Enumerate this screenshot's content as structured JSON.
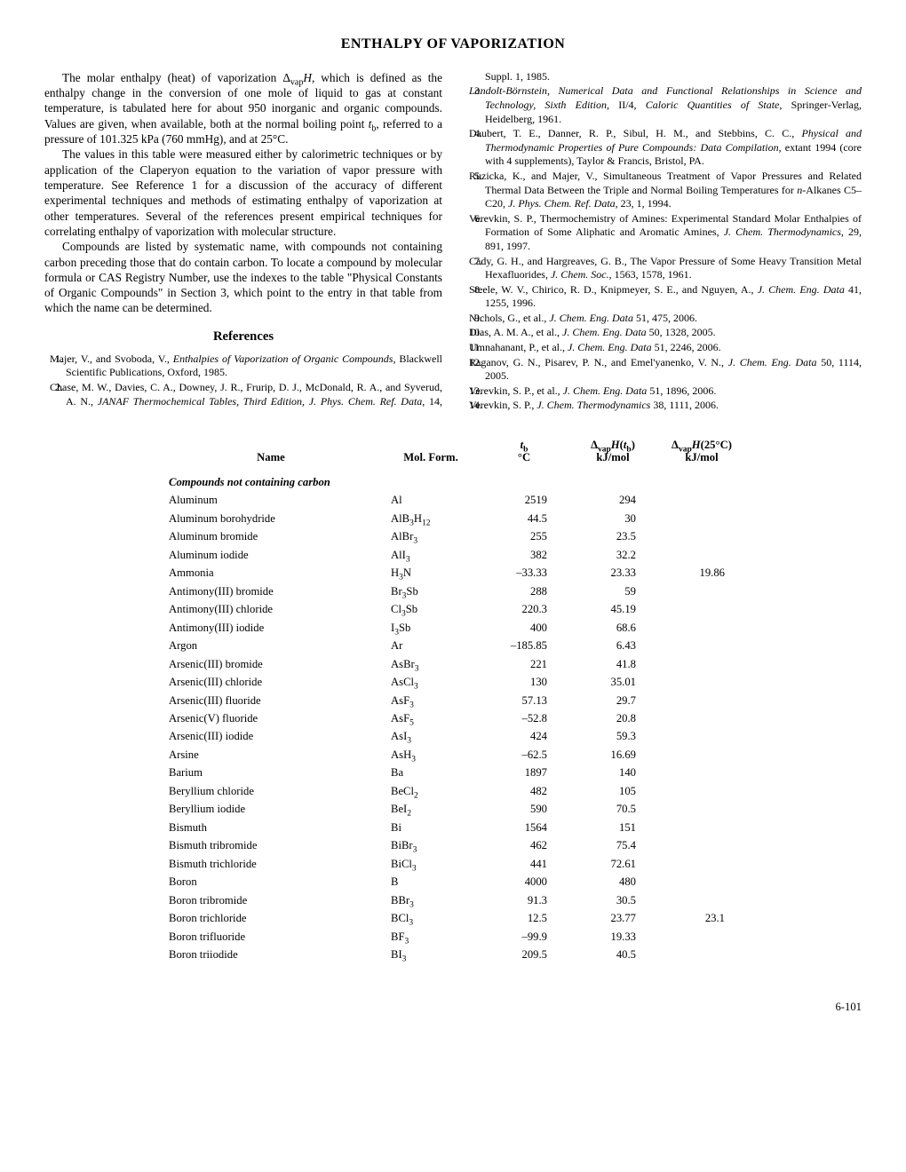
{
  "title": "ENTHALPY OF VAPORIZATION",
  "intro": {
    "p1": "The molar enthalpy (heat) of vaporization Δ_vap H, which is defined as the enthalpy change in the conversion of one mole of liquid to gas at constant temperature, is tabulated here for about 950 inorganic and organic compounds. Values are given, when available, both at the normal boiling point t_b, referred to a pressure of 101.325 kPa (760 mmHg), and at 25°C.",
    "p2": "The values in this table were measured either by calorimetric techniques or by application of the Claperyon equation to the variation of vapor pressure with temperature. See Reference 1 for a discussion of the accuracy of different experimental techniques and methods of estimating enthalpy of vaporization at other temperatures. Several of the references present empirical techniques for correlating enthalpy of vaporization with molecular structure.",
    "p3": "Compounds are listed by systematic name, with compounds not containing carbon preceding those that do contain carbon. To locate a compound by molecular formula or CAS Registry Number, use the indexes to the table \"Physical Constants of Organic Compounds\" in Section 3, which point to the entry in that table from which the name can be determined."
  },
  "refs_heading": "References",
  "references": [
    "Majer, V., and Svoboda, V., Enthalpies of Vaporization of Organic Compounds, Blackwell Scientific Publications, Oxford, 1985.",
    "Chase, M. W., Davies, C. A., Downey, J. R., Frurip, D. J., McDonald, R. A., and Syverud, A. N., JANAF Thermochemical Tables, Third Edition, J. Phys. Chem. Ref. Data, 14, Suppl. 1, 1985.",
    "Landolt-Börnstein, Numerical Data and Functional Relationships in Science and Technology, Sixth Edition, II/4, Caloric Quantities of State, Springer-Verlag, Heidelberg, 1961.",
    "Daubert, T. E., Danner, R. P., Sibul, H. M., and Stebbins, C. C., Physical and Thermodynamic Properties of Pure Compounds: Data Compilation, extant 1994 (core with 4 supplements), Taylor & Francis, Bristol, PA.",
    "Ruzicka, K., and Majer, V., Simultaneous Treatment of Vapor Pressures and Related Thermal Data Between the Triple and Normal Boiling Temperatures for n-Alkanes C5–C20, J. Phys. Chem. Ref. Data, 23, 1, 1994.",
    "Verevkin, S. P., Thermochemistry of Amines: Experimental Standard Molar Enthalpies of Formation of Some Aliphatic and Aromatic Amines, J. Chem. Thermodynamics, 29, 891, 1997.",
    "Cady, G. H., and Hargreaves, G. B., The Vapor Pressure of Some Heavy Transition Metal Hexafluorides, J. Chem. Soc., 1563, 1578, 1961.",
    "Steele, W. V., Chirico, R. D., Knipmeyer, S. E., and Nguyen, A., J. Chem. Eng. Data 41, 1255, 1996.",
    "Nichols, G., et al., J. Chem. Eng. Data 51, 475, 2006.",
    "Dias, A. M. A., et al., J. Chem. Eng. Data 50, 1328, 2005.",
    "Umnahanant, P., et al., J. Chem. Eng. Data 51, 2246, 2006.",
    "Raganov, G. N., Pisarev, P. N., and Emel'yanenko, V. N., J. Chem. Eng. Data 50, 1114, 2005.",
    "Verevkin, S. P., et al., J. Chem. Eng. Data 51, 1896, 2006.",
    "Verevkin, S. P., J. Chem. Thermodynamics 38, 1111, 2006."
  ],
  "table": {
    "headers": {
      "name": "Name",
      "form": "Mol. Form.",
      "tb_top": "t",
      "tb_sub": "b",
      "tb_unit": "°C",
      "h1_top": "Δ",
      "h1_sub1": "vap",
      "h1_mid": "H(t",
      "h1_sub2": "b",
      "h1_end": ")",
      "h1_unit": "kJ/mol",
      "h2_top": "Δ",
      "h2_sub1": "vap",
      "h2_mid": "H(25°C)",
      "h2_unit": "kJ/mol"
    },
    "section": "Compounds not containing carbon",
    "rows": [
      {
        "name": "Aluminum",
        "form": "Al",
        "tb": "2519",
        "h1": "294",
        "h2": ""
      },
      {
        "name": "Aluminum borohydride",
        "form": "AlB₃H₁₂",
        "tb": "44.5",
        "h1": "30",
        "h2": ""
      },
      {
        "name": "Aluminum bromide",
        "form": "AlBr₃",
        "tb": "255",
        "h1": "23.5",
        "h2": ""
      },
      {
        "name": "Aluminum iodide",
        "form": "AlI₃",
        "tb": "382",
        "h1": "32.2",
        "h2": ""
      },
      {
        "name": "Ammonia",
        "form": "H₃N",
        "tb": "–33.33",
        "h1": "23.33",
        "h2": "19.86"
      },
      {
        "name": "Antimony(III) bromide",
        "form": "Br₃Sb",
        "tb": "288",
        "h1": "59",
        "h2": ""
      },
      {
        "name": "Antimony(III) chloride",
        "form": "Cl₃Sb",
        "tb": "220.3",
        "h1": "45.19",
        "h2": ""
      },
      {
        "name": "Antimony(III) iodide",
        "form": "I₃Sb",
        "tb": "400",
        "h1": "68.6",
        "h2": ""
      },
      {
        "name": "Argon",
        "form": "Ar",
        "tb": "–185.85",
        "h1": "6.43",
        "h2": ""
      },
      {
        "name": "Arsenic(III) bromide",
        "form": "AsBr₃",
        "tb": "221",
        "h1": "41.8",
        "h2": ""
      },
      {
        "name": "Arsenic(III) chloride",
        "form": "AsCl₃",
        "tb": "130",
        "h1": "35.01",
        "h2": ""
      },
      {
        "name": "Arsenic(III) fluoride",
        "form": "AsF₃",
        "tb": "57.13",
        "h1": "29.7",
        "h2": ""
      },
      {
        "name": "Arsenic(V) fluoride",
        "form": "AsF₅",
        "tb": "–52.8",
        "h1": "20.8",
        "h2": ""
      },
      {
        "name": "Arsenic(III) iodide",
        "form": "AsI₃",
        "tb": "424",
        "h1": "59.3",
        "h2": ""
      },
      {
        "name": "Arsine",
        "form": "AsH₃",
        "tb": "–62.5",
        "h1": "16.69",
        "h2": ""
      },
      {
        "name": "Barium",
        "form": "Ba",
        "tb": "1897",
        "h1": "140",
        "h2": ""
      },
      {
        "name": "Beryllium chloride",
        "form": "BeCl₂",
        "tb": "482",
        "h1": "105",
        "h2": ""
      },
      {
        "name": "Beryllium iodide",
        "form": "BeI₂",
        "tb": "590",
        "h1": "70.5",
        "h2": ""
      },
      {
        "name": "Bismuth",
        "form": "Bi",
        "tb": "1564",
        "h1": "151",
        "h2": ""
      },
      {
        "name": "Bismuth tribromide",
        "form": "BiBr₃",
        "tb": "462",
        "h1": "75.4",
        "h2": ""
      },
      {
        "name": "Bismuth trichloride",
        "form": "BiCl₃",
        "tb": "441",
        "h1": "72.61",
        "h2": ""
      },
      {
        "name": "Boron",
        "form": "B",
        "tb": "4000",
        "h1": "480",
        "h2": ""
      },
      {
        "name": "Boron tribromide",
        "form": "BBr₃",
        "tb": "91.3",
        "h1": "30.5",
        "h2": ""
      },
      {
        "name": "Boron trichloride",
        "form": "BCl₃",
        "tb": "12.5",
        "h1": "23.77",
        "h2": "23.1"
      },
      {
        "name": "Boron trifluoride",
        "form": "BF₃",
        "tb": "–99.9",
        "h1": "19.33",
        "h2": ""
      },
      {
        "name": "Boron triiodide",
        "form": "BI₃",
        "tb": "209.5",
        "h1": "40.5",
        "h2": ""
      }
    ]
  },
  "page_num": "6-101"
}
